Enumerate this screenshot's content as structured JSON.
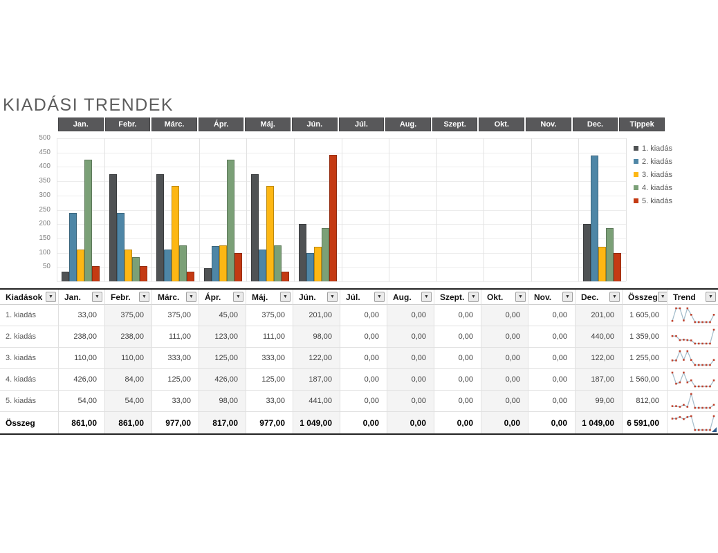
{
  "page": {
    "title": "KIADÁSI TRENDEK"
  },
  "tabs": {
    "items": [
      "Jan.",
      "Febr.",
      "Márc.",
      "Ápr.",
      "Máj.",
      "Jún.",
      "Júl.",
      "Aug.",
      "Szept.",
      "Okt.",
      "Nov.",
      "Dec.",
      "Tippek"
    ]
  },
  "icons": {
    "filter_glyph": "▼"
  },
  "colors": {
    "tab_bg": "#58585a",
    "title_text": "#5d5d5d",
    "axis_label": "#7f7f7f",
    "grid_h": "#ececec",
    "grid_v": "#e2e2e2",
    "table_border": "#222222",
    "cell_grid": "#e0e0e0",
    "band": "#f4f4f4",
    "sparkline_line": "#a6bfcd",
    "sparkline_marker": "#bf432f",
    "resize_handle": "#2f5e8f"
  },
  "chart_data": {
    "type": "bar",
    "title": "",
    "xlabel": "",
    "ylabel": "",
    "categories": [
      "Jan.",
      "Febr.",
      "Márc.",
      "Ápr.",
      "Máj.",
      "Jún.",
      "Júl.",
      "Aug.",
      "Szept.",
      "Okt.",
      "Nov.",
      "Dec."
    ],
    "series": [
      {
        "name": "1. kiadás",
        "color": "#4f5254",
        "values": [
          33,
          375,
          375,
          45,
          375,
          201,
          0,
          0,
          0,
          0,
          0,
          201
        ]
      },
      {
        "name": "2. kiadás",
        "color": "#4e86a6",
        "values": [
          238,
          238,
          111,
          123,
          111,
          98,
          0,
          0,
          0,
          0,
          0,
          440
        ]
      },
      {
        "name": "3. kiadás",
        "color": "#fdb714",
        "values": [
          110,
          110,
          333,
          125,
          333,
          122,
          0,
          0,
          0,
          0,
          0,
          122
        ]
      },
      {
        "name": "4. kiadás",
        "color": "#7ba077",
        "values": [
          426,
          84,
          125,
          426,
          125,
          187,
          0,
          0,
          0,
          0,
          0,
          187
        ]
      },
      {
        "name": "5. kiadás",
        "color": "#c43a13",
        "values": [
          54,
          54,
          33,
          98,
          33,
          441,
          0,
          0,
          0,
          0,
          0,
          99
        ]
      }
    ],
    "ylim": [
      0,
      500
    ],
    "yticks": [
      50,
      100,
      150,
      200,
      250,
      300,
      350,
      400,
      450,
      500
    ],
    "grid": true,
    "legend_position": "right"
  },
  "table": {
    "headers": [
      "Kiadások",
      "Jan.",
      "Febr.",
      "Márc.",
      "Ápr.",
      "Máj.",
      "Jún.",
      "Júl.",
      "Aug.",
      "Szept.",
      "Okt.",
      "Nov.",
      "Dec.",
      "Összeg",
      "Trend"
    ],
    "rows": [
      {
        "label": "1. kiadás",
        "values": [
          "33,00",
          "375,00",
          "375,00",
          "45,00",
          "375,00",
          "201,00",
          "0,00",
          "0,00",
          "0,00",
          "0,00",
          "0,00",
          "201,00"
        ],
        "total": "1 605,00",
        "trend": [
          33,
          375,
          375,
          45,
          375,
          201,
          0,
          0,
          0,
          0,
          0,
          201
        ]
      },
      {
        "label": "2. kiadás",
        "values": [
          "238,00",
          "238,00",
          "111,00",
          "123,00",
          "111,00",
          "98,00",
          "0,00",
          "0,00",
          "0,00",
          "0,00",
          "0,00",
          "440,00"
        ],
        "total": "1 359,00",
        "trend": [
          238,
          238,
          111,
          123,
          111,
          98,
          0,
          0,
          0,
          0,
          0,
          440
        ]
      },
      {
        "label": "3. kiadás",
        "values": [
          "110,00",
          "110,00",
          "333,00",
          "125,00",
          "333,00",
          "122,00",
          "0,00",
          "0,00",
          "0,00",
          "0,00",
          "0,00",
          "122,00"
        ],
        "total": "1 255,00",
        "trend": [
          110,
          110,
          333,
          125,
          333,
          122,
          0,
          0,
          0,
          0,
          0,
          122
        ]
      },
      {
        "label": "4. kiadás",
        "values": [
          "426,00",
          "84,00",
          "125,00",
          "426,00",
          "125,00",
          "187,00",
          "0,00",
          "0,00",
          "0,00",
          "0,00",
          "0,00",
          "187,00"
        ],
        "total": "1 560,00",
        "trend": [
          426,
          84,
          125,
          426,
          125,
          187,
          0,
          0,
          0,
          0,
          0,
          187
        ]
      },
      {
        "label": "5. kiadás",
        "values": [
          "54,00",
          "54,00",
          "33,00",
          "98,00",
          "33,00",
          "441,00",
          "0,00",
          "0,00",
          "0,00",
          "0,00",
          "0,00",
          "99,00"
        ],
        "total": "812,00",
        "trend": [
          54,
          54,
          33,
          98,
          33,
          441,
          0,
          0,
          0,
          0,
          0,
          99
        ]
      }
    ],
    "total_row": {
      "label": "Összeg",
      "values": [
        "861,00",
        "861,00",
        "977,00",
        "817,00",
        "977,00",
        "1 049,00",
        "0,00",
        "0,00",
        "0,00",
        "0,00",
        "0,00",
        "1 049,00"
      ],
      "total": "6 591,00",
      "trend": [
        861,
        861,
        977,
        817,
        977,
        1049,
        0,
        0,
        0,
        0,
        0,
        1049
      ]
    }
  }
}
